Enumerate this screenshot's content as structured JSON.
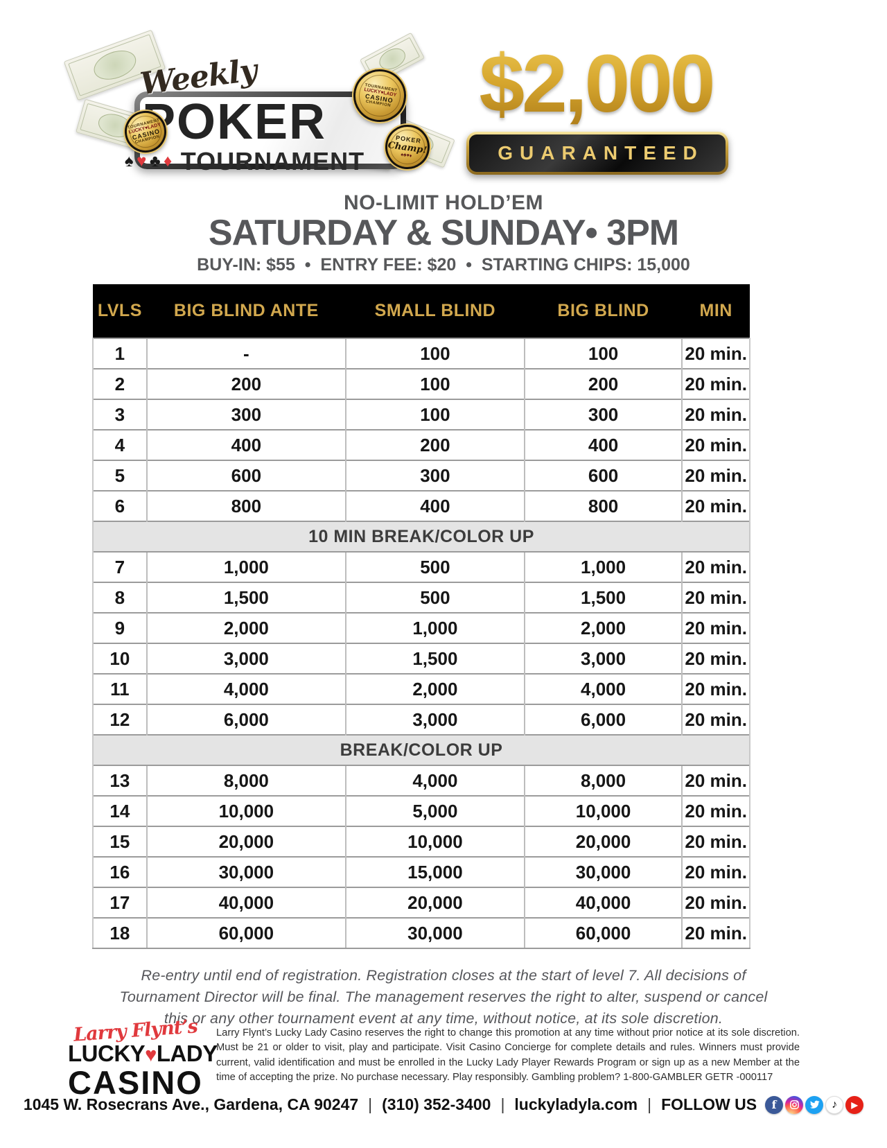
{
  "header": {
    "logo": {
      "weekly": "Weekly",
      "poker": "POKER",
      "suits": [
        "♠",
        "♥",
        "♣",
        "♦"
      ],
      "tournament": "TOURNAMENT",
      "coin_lines": [
        "TOURNAMENT",
        "LUCKY♥LADY",
        "CASINO",
        "CHAMPION"
      ],
      "champ_coin": {
        "line1": "POKER",
        "line2": "Champ!",
        "line3": "♠♣♥♦"
      }
    },
    "prize": {
      "amount": "$2,000",
      "guaranteed": "GUARANTEED"
    }
  },
  "headline": {
    "game": "NO-LIMIT HOLD’EM",
    "schedule": "SATURDAY & SUNDAY• 3PM",
    "details": "BUY-IN: $55  •  ENTRY FEE: $20  •  STARTING CHIPS: 15,000"
  },
  "table": {
    "columns": [
      "LVLS",
      "BIG BLIND ANTE",
      "SMALL BLIND",
      "BIG BLIND",
      "MIN"
    ],
    "column_keys": [
      "lvl",
      "big-blind-ante",
      "small-blind",
      "big-blind",
      "min"
    ],
    "rows": [
      {
        "cells": [
          "1",
          "-",
          "100",
          "100",
          "20 min."
        ]
      },
      {
        "cells": [
          "2",
          "200",
          "100",
          "200",
          "20 min."
        ]
      },
      {
        "cells": [
          "3",
          "300",
          "100",
          "300",
          "20 min."
        ]
      },
      {
        "cells": [
          "4",
          "400",
          "200",
          "400",
          "20 min."
        ]
      },
      {
        "cells": [
          "5",
          "600",
          "300",
          "600",
          "20 min."
        ]
      },
      {
        "cells": [
          "6",
          "800",
          "400",
          "800",
          "20 min."
        ]
      },
      {
        "break": true,
        "label": "10 MIN BREAK/COLOR UP"
      },
      {
        "cells": [
          "7",
          "1,000",
          "500",
          "1,000",
          "20 min."
        ]
      },
      {
        "cells": [
          "8",
          "1,500",
          "500",
          "1,500",
          "20 min."
        ]
      },
      {
        "cells": [
          "9",
          "2,000",
          "1,000",
          "2,000",
          "20 min."
        ]
      },
      {
        "cells": [
          "10",
          "3,000",
          "1,500",
          "3,000",
          "20 min."
        ]
      },
      {
        "cells": [
          "11",
          "4,000",
          "2,000",
          "4,000",
          "20 min."
        ]
      },
      {
        "cells": [
          "12",
          "6,000",
          "3,000",
          "6,000",
          "20 min."
        ]
      },
      {
        "break": true,
        "label": "BREAK/COLOR UP"
      },
      {
        "cells": [
          "13",
          "8,000",
          "4,000",
          "8,000",
          "20 min."
        ]
      },
      {
        "cells": [
          "14",
          "10,000",
          "5,000",
          "10,000",
          "20 min."
        ]
      },
      {
        "cells": [
          "15",
          "20,000",
          "10,000",
          "20,000",
          "20 min."
        ]
      },
      {
        "cells": [
          "16",
          "30,000",
          "15,000",
          "30,000",
          "20 min."
        ]
      },
      {
        "cells": [
          "17",
          "40,000",
          "20,000",
          "40,000",
          "20 min."
        ]
      },
      {
        "cells": [
          "18",
          "60,000",
          "30,000",
          "60,000",
          "20 min."
        ]
      }
    ]
  },
  "disclaimer": {
    "line1": "Re-entry until end of registration. Registration closes at the start of level 7. All decisions of",
    "line2": "Tournament Director will be final. The management reserves the right to alter, suspend or cancel",
    "line3": "this or any other tournament event at any time, without notice, at its sole discretion."
  },
  "casino_logo": {
    "script": "Larry Flynt’s",
    "lucky": "LUCKY",
    "heart": "♥",
    "lady": "LADY",
    "casino": "CASINO"
  },
  "fine_print": "Larry Flynt’s Lucky Lady Casino reserves the right to change this promotion at any time without prior notice at its sole discretion. Must be 21 or older to visit, play and participate. Visit Casino Concierge for complete details and rules. Winners must provide current, valid identification and must be enrolled in the Lucky Lady Player Rewards Program or sign up as a new Member at the time of accepting the prize. No purchase necessary. Play responsibly. Gambling problem? 1-800-GAMBLER GETR -000117",
  "footer": {
    "address": "1045 W. Rosecrans Ave., Gardena, CA 90247",
    "divider": "|",
    "phone": "(310) 352-3400",
    "website": "luckyladyla.com",
    "follow": "FOLLOW US",
    "social": [
      {
        "name": "facebook",
        "glyph": "f"
      },
      {
        "name": "instagram",
        "glyph": ""
      },
      {
        "name": "twitter",
        "glyph": ""
      },
      {
        "name": "tiktok",
        "glyph": "♪"
      },
      {
        "name": "youtube",
        "glyph": "▶"
      }
    ]
  },
  "colors": {
    "gold_header_text": "#d2a84e",
    "gold_amount": "#d6a62e",
    "headline_gray": "#57585a",
    "accent_red": "#e0393d",
    "table_header_bg": "#000000",
    "break_row_bg": "#e4e4e4"
  }
}
